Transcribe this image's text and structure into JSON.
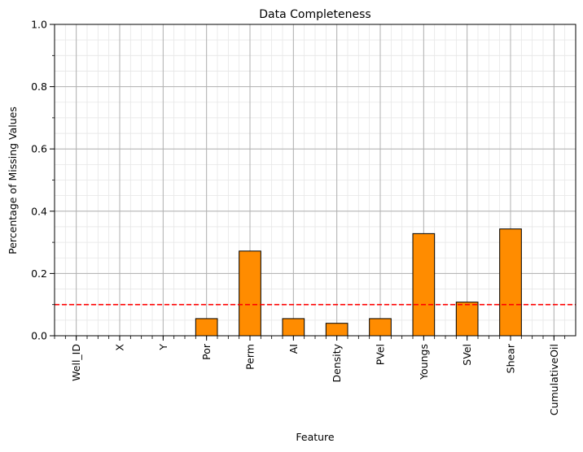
{
  "chart_data": {
    "type": "bar",
    "title": "Data Completeness",
    "xlabel": "Feature",
    "ylabel": "Percentage of Missing Values",
    "categories": [
      "Well_ID",
      "X",
      "Y",
      "Por",
      "Perm",
      "AI",
      "Density",
      "PVel",
      "Youngs",
      "SVel",
      "Shear",
      "CumulativeOil"
    ],
    "values": [
      0.0,
      0.0,
      0.0,
      0.055,
      0.272,
      0.055,
      0.04,
      0.055,
      0.328,
      0.108,
      0.343,
      0.0
    ],
    "ylim": [
      0,
      1.0
    ],
    "yticks": [
      "0.0",
      "0.2",
      "0.4",
      "0.6",
      "0.8",
      "1.0"
    ],
    "reference_line": {
      "value": 0.1,
      "color": "#ff0000",
      "style": "dashed"
    },
    "bar_color": "#ff8c00",
    "bar_edge_color": "#000000",
    "grid": true,
    "minor_grid": true
  }
}
